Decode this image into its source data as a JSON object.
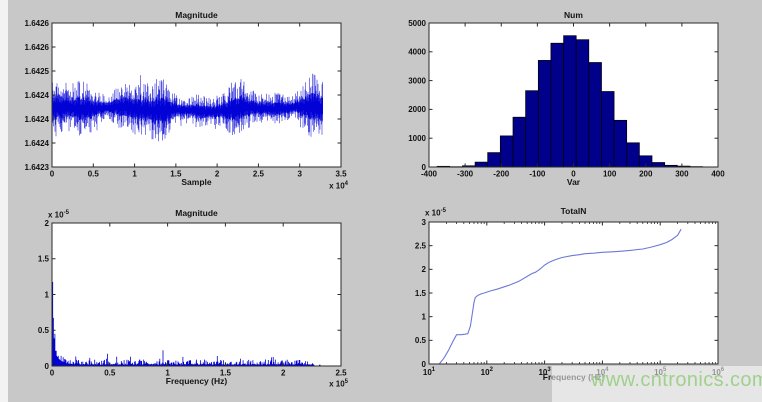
{
  "figure": {
    "background_color": "#c8c8c8",
    "plot_background": "#ffffff",
    "watermark": {
      "text": "www.cntronics.com",
      "color": "#a0d08c"
    }
  },
  "chart_data": [
    {
      "id": "signal",
      "type": "line",
      "title": "Magnitude",
      "xlabel": "Sample",
      "x_exponent": {
        "base": "x 10",
        "sup": "4"
      },
      "xlim": [
        0,
        35000
      ],
      "ylim": [
        1.6423,
        1.6426
      ],
      "x_ticks": [
        "0",
        "0.5",
        "1",
        "1.5",
        "2",
        "2.5",
        "3",
        "3.5"
      ],
      "y_ticks": [
        "1.6423",
        "1.6424",
        "1.6424",
        "1.6424",
        "1.6425",
        "1.6426",
        "1.6426"
      ],
      "series_color": "#0202d6",
      "description": "Dense blue noise record of ~32800 samples, mean level ~1.64242, fluctuation ~±0.00006 with slow envelope modulation",
      "noise": {
        "mean": 1.64242,
        "amplitude": 6e-05,
        "x_end": 32800,
        "seed": 11
      }
    },
    {
      "id": "histogram",
      "type": "bar",
      "title": "Num",
      "xlabel": "Var",
      "xlim": [
        -400,
        400
      ],
      "ylim": [
        0,
        5000
      ],
      "x_ticks": [
        "-400",
        "-300",
        "-200",
        "-100",
        "0",
        "100",
        "200",
        "300",
        "400"
      ],
      "y_ticks": [
        "0",
        "1000",
        "2000",
        "3000",
        "4000",
        "5000"
      ],
      "bar_color": "#00008b",
      "bar_edge_color": "#000000",
      "bin_width": 35,
      "bin_centers": [
        -360,
        -325,
        -290,
        -255,
        -220,
        -185,
        -150,
        -115,
        -80,
        -45,
        -10,
        25,
        60,
        95,
        130,
        165,
        200,
        235,
        270,
        305,
        340
      ],
      "values": [
        25,
        10,
        40,
        170,
        500,
        1080,
        1730,
        2650,
        3700,
        4300,
        4560,
        4420,
        3630,
        2620,
        1620,
        840,
        390,
        155,
        60,
        30,
        15
      ]
    },
    {
      "id": "spectrum",
      "type": "line",
      "title": "Magnitude",
      "xlabel": "Frequency (Hz)",
      "x_exponent": {
        "base": "x 10",
        "sup": "5"
      },
      "y_exponent": {
        "base": "x 10",
        "sup": "-5"
      },
      "xlim": [
        0,
        250000
      ],
      "ylim_1e5": [
        0,
        2
      ],
      "x_ticks": [
        "0",
        "0.5",
        "1",
        "1.5",
        "2",
        "2.5"
      ],
      "y_ticks": [
        "0",
        "0.5",
        "1",
        "1.5",
        "2"
      ],
      "series_color": "#0202d6",
      "baseline_1e5": 0.05,
      "x_end": 232000,
      "peaks_1e5": [
        [
          0,
          2.0
        ],
        [
          2500,
          0.45
        ],
        [
          48000,
          0.17
        ],
        [
          56000,
          0.13
        ],
        [
          76000,
          0.09
        ],
        [
          96000,
          0.22
        ],
        [
          125000,
          0.09
        ],
        [
          143000,
          0.14
        ],
        [
          163000,
          0.1
        ],
        [
          190000,
          0.12
        ],
        [
          212000,
          0.08
        ]
      ],
      "description": "FFT magnitude: tall DC spike reaching top of axis, low noise floor ~0.05e-5 with small spikes, data ends ~2.32e5 Hz"
    },
    {
      "id": "cumulative",
      "type": "line",
      "title": "TotalN",
      "xlabel": "Frequency (Hz)",
      "y_exponent": {
        "base": "x 10",
        "sup": "-5"
      },
      "x_scale": "log",
      "xlim": [
        10,
        1000000
      ],
      "ylim_1e5": [
        0,
        3
      ],
      "x_tick_sups": [
        "1",
        "2",
        "3",
        "4",
        "5",
        "6"
      ],
      "y_ticks": [
        "0",
        "0.5",
        "1",
        "1.5",
        "2",
        "2.5",
        "3"
      ],
      "series_color": "#6e79d8",
      "points_1e5": [
        [
          15,
          0
        ],
        [
          18,
          0.12
        ],
        [
          22,
          0.3
        ],
        [
          26,
          0.48
        ],
        [
          30,
          0.62
        ],
        [
          36,
          0.62
        ],
        [
          42,
          0.63
        ],
        [
          47,
          0.64
        ],
        [
          52,
          0.8
        ],
        [
          56,
          1.05
        ],
        [
          60,
          1.3
        ],
        [
          63,
          1.4
        ],
        [
          70,
          1.45
        ],
        [
          80,
          1.48
        ],
        [
          90,
          1.5
        ],
        [
          100,
          1.52
        ],
        [
          120,
          1.55
        ],
        [
          150,
          1.58
        ],
        [
          200,
          1.63
        ],
        [
          250,
          1.67
        ],
        [
          300,
          1.71
        ],
        [
          350,
          1.74
        ],
        [
          400,
          1.78
        ],
        [
          500,
          1.85
        ],
        [
          600,
          1.91
        ],
        [
          700,
          1.94
        ],
        [
          800,
          1.99
        ],
        [
          900,
          2.04
        ],
        [
          1000,
          2.09
        ],
        [
          1200,
          2.15
        ],
        [
          1500,
          2.2
        ],
        [
          2000,
          2.25
        ],
        [
          3000,
          2.29
        ],
        [
          4000,
          2.31
        ],
        [
          5000,
          2.33
        ],
        [
          7000,
          2.34
        ],
        [
          10000,
          2.36
        ],
        [
          15000,
          2.37
        ],
        [
          20000,
          2.38
        ],
        [
          30000,
          2.4
        ],
        [
          50000,
          2.43
        ],
        [
          70000,
          2.47
        ],
        [
          100000,
          2.52
        ],
        [
          130000,
          2.57
        ],
        [
          160000,
          2.63
        ],
        [
          200000,
          2.72
        ],
        [
          230000,
          2.85
        ]
      ]
    }
  ]
}
